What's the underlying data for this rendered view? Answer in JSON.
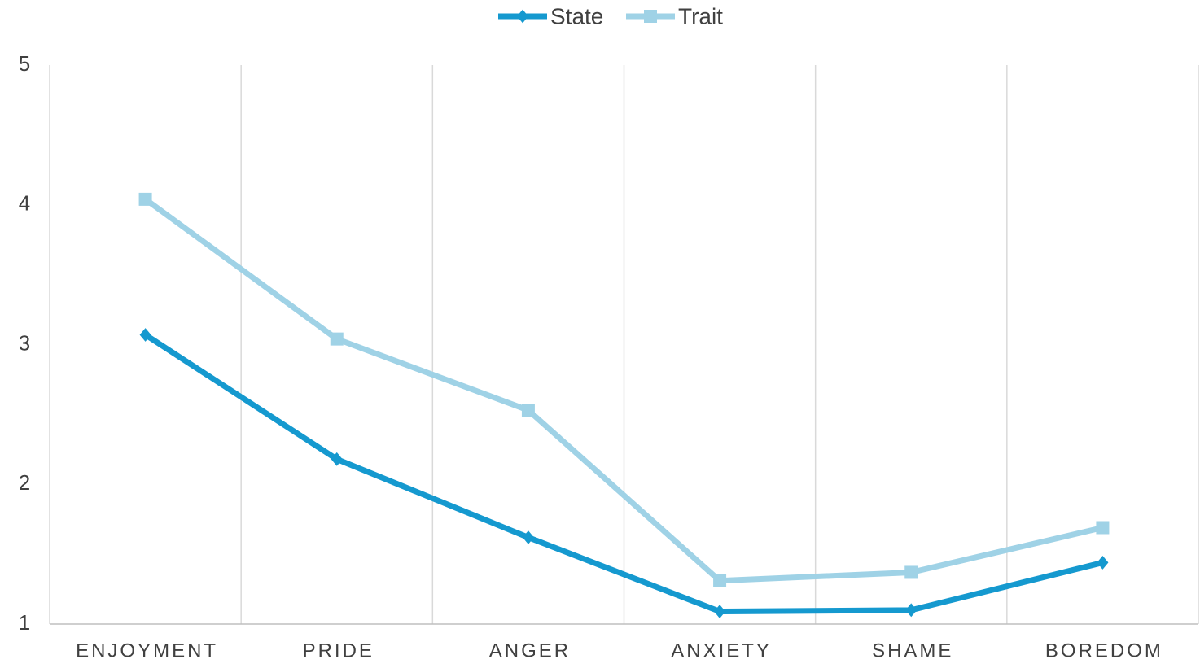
{
  "chart_data": {
    "type": "line",
    "categories": [
      "ENJOYMENT",
      "PRIDE",
      "ANGER",
      "ANXIETY",
      "SHAME",
      "BOREDOM"
    ],
    "series": [
      {
        "name": "State",
        "color": "#1599cf",
        "marker": "diamond",
        "values": [
          3.07,
          2.18,
          1.62,
          1.09,
          1.1,
          1.44
        ]
      },
      {
        "name": "Trait",
        "color": "#9fd2e6",
        "marker": "square",
        "values": [
          4.04,
          3.04,
          2.53,
          1.31,
          1.37,
          1.69
        ]
      }
    ],
    "ylim": [
      1,
      5
    ],
    "yticks": [
      1,
      2,
      3,
      4,
      5
    ],
    "legend": "top"
  }
}
